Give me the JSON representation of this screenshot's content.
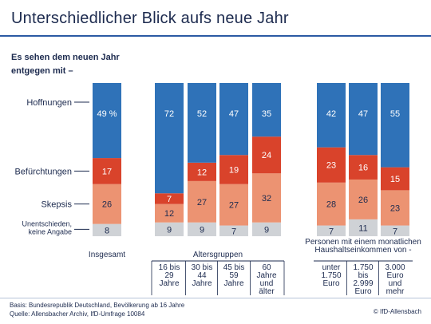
{
  "title": "Unterschiedlicher Blick aufs neue Jahr",
  "subtitle": "Es sehen dem neuen Jahr entgegen mit  –",
  "footer": {
    "basis": "Basis: Bundesrepublik Deutschland, Bevölkerung ab 16 Jahre",
    "source": "Quelle: Allensbacher Archiv, IfD-Umfrage 10084",
    "credit": "© IfD-Allensbach"
  },
  "colors": {
    "hoffnungen": "#2f72b8",
    "befuerchtungen": "#d9432b",
    "skepsis": "#ec9372",
    "unentschieden": "#cfd2d6",
    "text_dark": "#1d2b4f"
  },
  "chart_data": {
    "type": "bar",
    "stacked": true,
    "value_unit": "%",
    "series": [
      {
        "name": "Hoffnungen",
        "color": "#2f72b8",
        "values": [
          49,
          72,
          52,
          47,
          35,
          42,
          47,
          55
        ],
        "labels": [
          "49 %",
          "72",
          "52",
          "47",
          "35",
          "42",
          "47",
          "55"
        ]
      },
      {
        "name": "Befürchtungen",
        "color": "#d9432b",
        "values": [
          17,
          7,
          12,
          19,
          24,
          23,
          16,
          15
        ],
        "labels": [
          "17",
          "7",
          "12",
          "19",
          "24",
          "23",
          "16",
          "15"
        ]
      },
      {
        "name": "Skepsis",
        "color": "#ec9372",
        "values": [
          26,
          12,
          27,
          27,
          32,
          28,
          26,
          23
        ],
        "labels": [
          "26",
          "12",
          "27",
          "27",
          "32",
          "28",
          "26",
          "23"
        ]
      },
      {
        "name": "Unentschieden, keine Angabe",
        "color": "#cfd2d6",
        "values": [
          8,
          9,
          9,
          7,
          9,
          7,
          11,
          7
        ],
        "labels": [
          "8",
          "9",
          "9",
          "7",
          "9",
          "7",
          "11",
          "7"
        ]
      }
    ],
    "series_labels": [
      {
        "lines": [
          "Hoffnungen"
        ]
      },
      {
        "lines": [
          "Befürchtungen"
        ]
      },
      {
        "lines": [
          "Skepsis"
        ]
      },
      {
        "lines": [
          "Unentschieden,",
          "keine Angabe"
        ]
      }
    ],
    "groups": [
      {
        "name": "Insgesamt",
        "name_lines": [
          "Insgesamt"
        ],
        "bars": [
          0
        ],
        "categories": [
          []
        ]
      },
      {
        "name": "Altersgruppen",
        "name_lines": [
          "Altersgruppen"
        ],
        "bars": [
          1,
          2,
          3,
          4
        ],
        "categories": [
          [
            "16 bis",
            "29",
            "Jahre"
          ],
          [
            "30 bis",
            "44",
            "Jahre"
          ],
          [
            "45 bis",
            "59",
            "Jahre"
          ],
          [
            "60",
            "Jahre",
            "und",
            "älter"
          ]
        ]
      },
      {
        "name": "Personen mit einem monatlichen Haushaltseinkommen von -",
        "name_lines": [
          "Personen mit einem monatlichen",
          "Haushaltseinkommen von -"
        ],
        "bars": [
          5,
          6,
          7
        ],
        "categories": [
          [
            "unter",
            "1.750",
            "Euro"
          ],
          [
            "1.750",
            "bis",
            "2.999",
            "Euro"
          ],
          [
            "3.000",
            "Euro",
            "und",
            "mehr"
          ]
        ]
      }
    ]
  }
}
